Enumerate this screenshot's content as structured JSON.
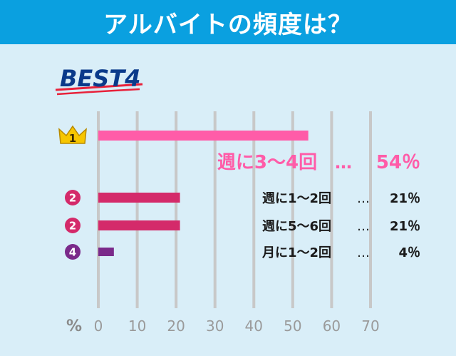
{
  "header": {
    "title": "アルバイトの頻度は？"
  },
  "badge": {
    "text": "BEST4"
  },
  "colors": {
    "header": "#0aa0e0",
    "background": "#d9eef8",
    "first": "#ff5ca8",
    "second": "#d42a6a",
    "fourth": "#7a2a8a",
    "grid": "#c8c8c8",
    "axis_text": "#9a9a9a"
  },
  "chart_data": {
    "type": "bar",
    "orientation": "horizontal",
    "unit_label": "%",
    "xlim": [
      0,
      70
    ],
    "x_ticks": [
      0,
      10,
      20,
      30,
      40,
      50,
      60,
      70
    ],
    "grid": true,
    "bars": [
      {
        "rank": "1",
        "label": "週に3〜4回",
        "value": 54,
        "value_text": "54％",
        "color": "#ff5ca8"
      },
      {
        "rank": "2",
        "label": "週に1〜2回",
        "value": 21,
        "value_text": "21％",
        "color": "#d42a6a"
      },
      {
        "rank": "2",
        "label": "週に5〜6回",
        "value": 21,
        "value_text": "21％",
        "color": "#d42a6a"
      },
      {
        "rank": "4",
        "label": "月に1〜2回",
        "value": 4,
        "value_text": "4％",
        "color": "#7a2a8a"
      }
    ]
  }
}
